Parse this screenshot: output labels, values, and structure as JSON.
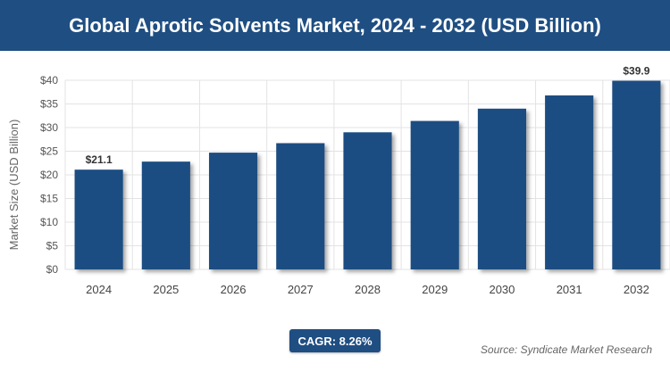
{
  "header": {
    "title": "Global Aprotic Solvents Market, 2024 - 2032 (USD Billion)"
  },
  "colors": {
    "bar": "#1f4e82",
    "header_bg": "#1f4e82",
    "grid": "#e3e3e3"
  },
  "chart_data": {
    "type": "bar",
    "title": "Global Aprotic Solvents Market, 2024 - 2032 (USD Billion)",
    "ylabel": "Market Size (USD Billion)",
    "xlabel": "",
    "categories": [
      "2024",
      "2025",
      "2026",
      "2027",
      "2028",
      "2029",
      "2030",
      "2031",
      "2032"
    ],
    "values": [
      21.1,
      22.8,
      24.7,
      26.7,
      29.0,
      31.4,
      34.0,
      36.8,
      39.9
    ],
    "ylim": [
      0,
      40
    ],
    "yticks": [
      "$0",
      "$5",
      "$10",
      "$15",
      "$20",
      "$25",
      "$30",
      "$35",
      "$40"
    ],
    "data_labels": [
      {
        "category": "2024",
        "text": "$21.1"
      },
      {
        "category": "2032",
        "text": "$39.9"
      }
    ],
    "grid": true,
    "legend": "none"
  },
  "footer": {
    "cagr": "CAGR: 8.26%",
    "source": "Source: Syndicate Market Research"
  }
}
